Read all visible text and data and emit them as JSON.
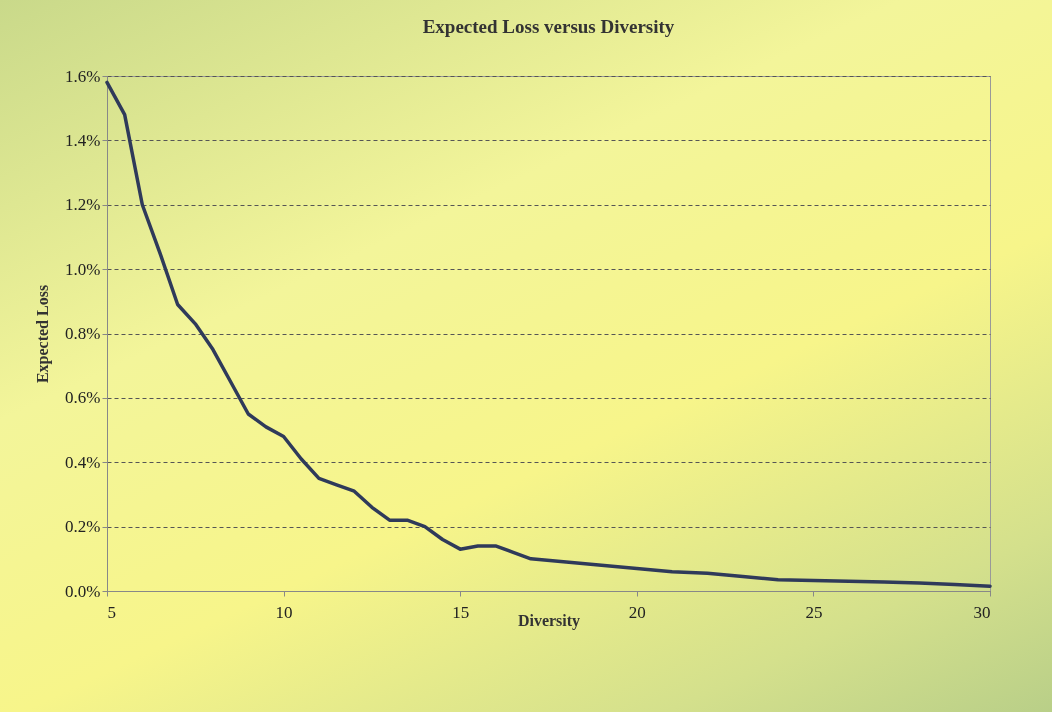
{
  "chart_data": {
    "type": "line",
    "title": "Expected Loss versus Diversity",
    "xlabel": "Diversity",
    "ylabel": "Expected Loss",
    "x": [
      5,
      5.5,
      6,
      6.5,
      7,
      7.5,
      8,
      8.5,
      9,
      9.5,
      10,
      10.5,
      11,
      11.5,
      12,
      12.5,
      13,
      13.5,
      14,
      14.5,
      15,
      15.5,
      16,
      16.5,
      17,
      18,
      19,
      20,
      21,
      22,
      23,
      24,
      25,
      26,
      27,
      28,
      29,
      30
    ],
    "series": [
      {
        "color": "#2f3a5a",
        "values": [
          1.58,
          1.48,
          1.2,
          1.05,
          0.89,
          0.83,
          0.75,
          0.65,
          0.55,
          0.51,
          0.48,
          0.41,
          0.35,
          0.33,
          0.31,
          0.26,
          0.22,
          0.22,
          0.2,
          0.16,
          0.13,
          0.14,
          0.14,
          0.12,
          0.1,
          0.09,
          0.08,
          0.07,
          0.06,
          0.055,
          0.045,
          0.035,
          0.033,
          0.03,
          0.028,
          0.025,
          0.02,
          0.015
        ]
      }
    ],
    "xlim": [
      5,
      30
    ],
    "xticks": [
      5,
      10,
      15,
      20,
      25,
      30
    ],
    "ylim": [
      0,
      1.6
    ],
    "yticks": [
      {
        "value": 0,
        "label": "0.0%"
      },
      {
        "value": 0.2,
        "label": "0.2%"
      },
      {
        "value": 0.4,
        "label": "0.4%"
      },
      {
        "value": 0.6,
        "label": "0.6%"
      },
      {
        "value": 0.8,
        "label": "0.8%"
      },
      {
        "value": 1.0,
        "label": "1.0%"
      },
      {
        "value": 1.2,
        "label": "1.2%"
      },
      {
        "value": 1.4,
        "label": "1.4%"
      },
      {
        "value": 1.6,
        "label": "1.6%"
      }
    ],
    "grid": "y",
    "line_style": "solid",
    "marker": "none"
  }
}
